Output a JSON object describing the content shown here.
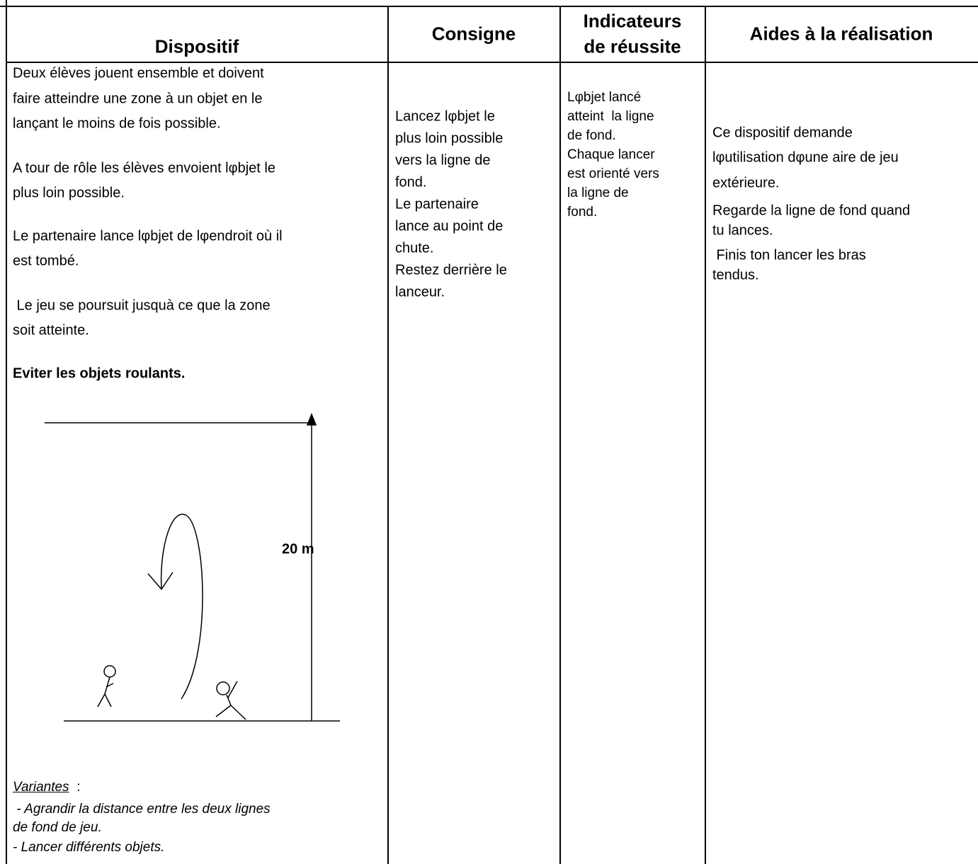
{
  "header": [
    "Dispositif",
    "Consigne",
    [
      "Indicateurs",
      "de réussite"
    ],
    "Aides à la réalisation"
  ],
  "dispositif": {
    "lines": [
      "Deux élèves jouent ensemble et doivent",
      "faire atteindre une zone à un objet en le",
      "lançant le moins de fois possible.",
      "A tour de rôle les élèves envoient lφbjet le",
      "plus loin possible.",
      "Le partenaire lance lφbjet de lφendroit où il",
      "est tombé.",
      " Le jeu se poursuit jusquà ce que la zone",
      "soit atteinte."
    ],
    "warning": "Eviter les objets roulants.",
    "diagram_label": "20 m",
    "variantes": {
      "label": "Variantes",
      "suffix": " :",
      "lines": [
        " - Agrandir la distance entre les deux lignes",
        "de fond de jeu.",
        "- Lancer différents objets."
      ]
    }
  },
  "consigne": [
    "Lancez lφbjet le",
    "plus loin possible",
    "vers la ligne de",
    "fond.",
    "Le partenaire",
    "lance au point de",
    "chute.",
    "Restez derrière le",
    "lanceur."
  ],
  "indicateurs": [
    "Lφbjet lancé",
    "atteint  la ligne",
    "de fond.",
    "Chaque lancer",
    "est orienté vers",
    "la ligne de",
    "fond."
  ],
  "aides": [
    "Ce dispositif demande",
    "lφutilisation dφune aire de jeu",
    "extérieure.",
    "Regarde la ligne de fond quand",
    "tu lances.",
    " Finis ton lancer les bras",
    "tendus."
  ]
}
